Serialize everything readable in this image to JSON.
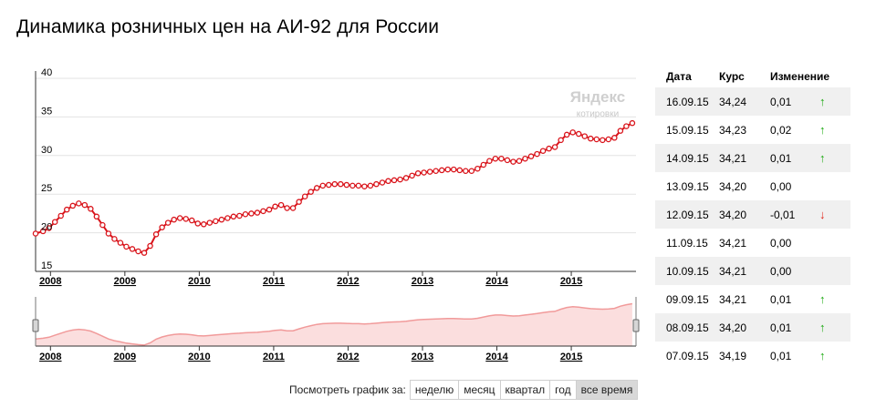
{
  "title": "Динамика розничных цен на АИ-92 для России",
  "watermark": {
    "brand": "Яндекс",
    "sub": "котировки"
  },
  "chart_data": {
    "type": "line",
    "title": "Динамика розничных цен на АИ-92 для России",
    "xlabel": "",
    "ylabel": "",
    "ylim": [
      15,
      40
    ],
    "yticks": [
      15,
      20,
      25,
      30,
      35,
      40
    ],
    "xticks": [
      "2008",
      "2009",
      "2010",
      "2011",
      "2012",
      "2013",
      "2014",
      "2015"
    ],
    "grid": true,
    "series": [
      {
        "name": "",
        "color": "#d9141b",
        "points": [
          [
            2007.9,
            19.9
          ],
          [
            2008.0,
            20.2
          ],
          [
            2008.08,
            20.6
          ],
          [
            2008.16,
            21.4
          ],
          [
            2008.24,
            22.2
          ],
          [
            2008.32,
            23.0
          ],
          [
            2008.4,
            23.5
          ],
          [
            2008.48,
            23.8
          ],
          [
            2008.56,
            23.6
          ],
          [
            2008.64,
            23.1
          ],
          [
            2008.72,
            22.1
          ],
          [
            2008.8,
            21.0
          ],
          [
            2008.88,
            19.9
          ],
          [
            2008.96,
            19.2
          ],
          [
            2009.04,
            18.7
          ],
          [
            2009.12,
            18.2
          ],
          [
            2009.2,
            17.9
          ],
          [
            2009.28,
            17.6
          ],
          [
            2009.36,
            17.4
          ],
          [
            2009.44,
            18.3
          ],
          [
            2009.52,
            19.8
          ],
          [
            2009.6,
            20.7
          ],
          [
            2009.68,
            21.3
          ],
          [
            2009.76,
            21.7
          ],
          [
            2009.84,
            21.9
          ],
          [
            2009.92,
            21.8
          ],
          [
            2010.0,
            21.6
          ],
          [
            2010.08,
            21.2
          ],
          [
            2010.16,
            21.1
          ],
          [
            2010.24,
            21.3
          ],
          [
            2010.32,
            21.5
          ],
          [
            2010.4,
            21.7
          ],
          [
            2010.48,
            21.9
          ],
          [
            2010.56,
            22.1
          ],
          [
            2010.64,
            22.2
          ],
          [
            2010.72,
            22.4
          ],
          [
            2010.8,
            22.5
          ],
          [
            2010.88,
            22.6
          ],
          [
            2010.96,
            22.8
          ],
          [
            2011.04,
            23.0
          ],
          [
            2011.12,
            23.4
          ],
          [
            2011.2,
            23.6
          ],
          [
            2011.28,
            23.2
          ],
          [
            2011.36,
            23.2
          ],
          [
            2011.44,
            24.0
          ],
          [
            2011.52,
            24.7
          ],
          [
            2011.6,
            25.3
          ],
          [
            2011.68,
            25.8
          ],
          [
            2011.76,
            26.1
          ],
          [
            2011.84,
            26.2
          ],
          [
            2011.92,
            26.3
          ],
          [
            2012.0,
            26.3
          ],
          [
            2012.08,
            26.2
          ],
          [
            2012.16,
            26.1
          ],
          [
            2012.24,
            26.1
          ],
          [
            2012.32,
            26.0
          ],
          [
            2012.4,
            26.1
          ],
          [
            2012.48,
            26.3
          ],
          [
            2012.56,
            26.5
          ],
          [
            2012.64,
            26.7
          ],
          [
            2012.72,
            26.8
          ],
          [
            2012.8,
            26.9
          ],
          [
            2012.88,
            27.1
          ],
          [
            2012.96,
            27.4
          ],
          [
            2013.04,
            27.7
          ],
          [
            2013.12,
            27.8
          ],
          [
            2013.2,
            27.9
          ],
          [
            2013.28,
            28.0
          ],
          [
            2013.36,
            28.1
          ],
          [
            2013.44,
            28.2
          ],
          [
            2013.52,
            28.2
          ],
          [
            2013.6,
            28.1
          ],
          [
            2013.68,
            28.0
          ],
          [
            2013.76,
            28.0
          ],
          [
            2013.84,
            28.3
          ],
          [
            2013.92,
            28.8
          ],
          [
            2014.0,
            29.3
          ],
          [
            2014.08,
            29.6
          ],
          [
            2014.16,
            29.6
          ],
          [
            2014.24,
            29.4
          ],
          [
            2014.32,
            29.2
          ],
          [
            2014.4,
            29.3
          ],
          [
            2014.48,
            29.6
          ],
          [
            2014.56,
            29.9
          ],
          [
            2014.64,
            30.2
          ],
          [
            2014.72,
            30.6
          ],
          [
            2014.8,
            30.9
          ],
          [
            2014.88,
            31.1
          ],
          [
            2014.96,
            32.0
          ],
          [
            2015.04,
            32.7
          ],
          [
            2015.12,
            33.0
          ],
          [
            2015.2,
            32.8
          ],
          [
            2015.28,
            32.5
          ],
          [
            2015.36,
            32.2
          ],
          [
            2015.44,
            32.1
          ],
          [
            2015.52,
            32.0
          ],
          [
            2015.6,
            32.1
          ],
          [
            2015.68,
            32.3
          ],
          [
            2015.76,
            33.2
          ],
          [
            2015.84,
            33.8
          ],
          [
            2015.92,
            34.2
          ]
        ]
      }
    ]
  },
  "period_selector": {
    "label": "Посмотреть график за:",
    "options": [
      "неделю",
      "месяц",
      "квартал",
      "год",
      "все время"
    ],
    "active": "все время"
  },
  "table": {
    "headers": [
      "Дата",
      "Курс",
      "Изменение"
    ],
    "rows": [
      {
        "date": "16.09.15",
        "rate": "34,24",
        "change": "0,01",
        "dir": "up"
      },
      {
        "date": "15.09.15",
        "rate": "34,23",
        "change": "0,02",
        "dir": "up"
      },
      {
        "date": "14.09.15",
        "rate": "34,21",
        "change": "0,01",
        "dir": "up"
      },
      {
        "date": "13.09.15",
        "rate": "34,20",
        "change": "0,00",
        "dir": "none"
      },
      {
        "date": "12.09.15",
        "rate": "34,20",
        "change": "-0,01",
        "dir": "down"
      },
      {
        "date": "11.09.15",
        "rate": "34,21",
        "change": "0,00",
        "dir": "none"
      },
      {
        "date": "10.09.15",
        "rate": "34,21",
        "change": "0,00",
        "dir": "none"
      },
      {
        "date": "09.09.15",
        "rate": "34,21",
        "change": "0,01",
        "dir": "up"
      },
      {
        "date": "08.09.15",
        "rate": "34,20",
        "change": "0,01",
        "dir": "up"
      },
      {
        "date": "07.09.15",
        "rate": "34,19",
        "change": "0,01",
        "dir": "up"
      }
    ]
  }
}
